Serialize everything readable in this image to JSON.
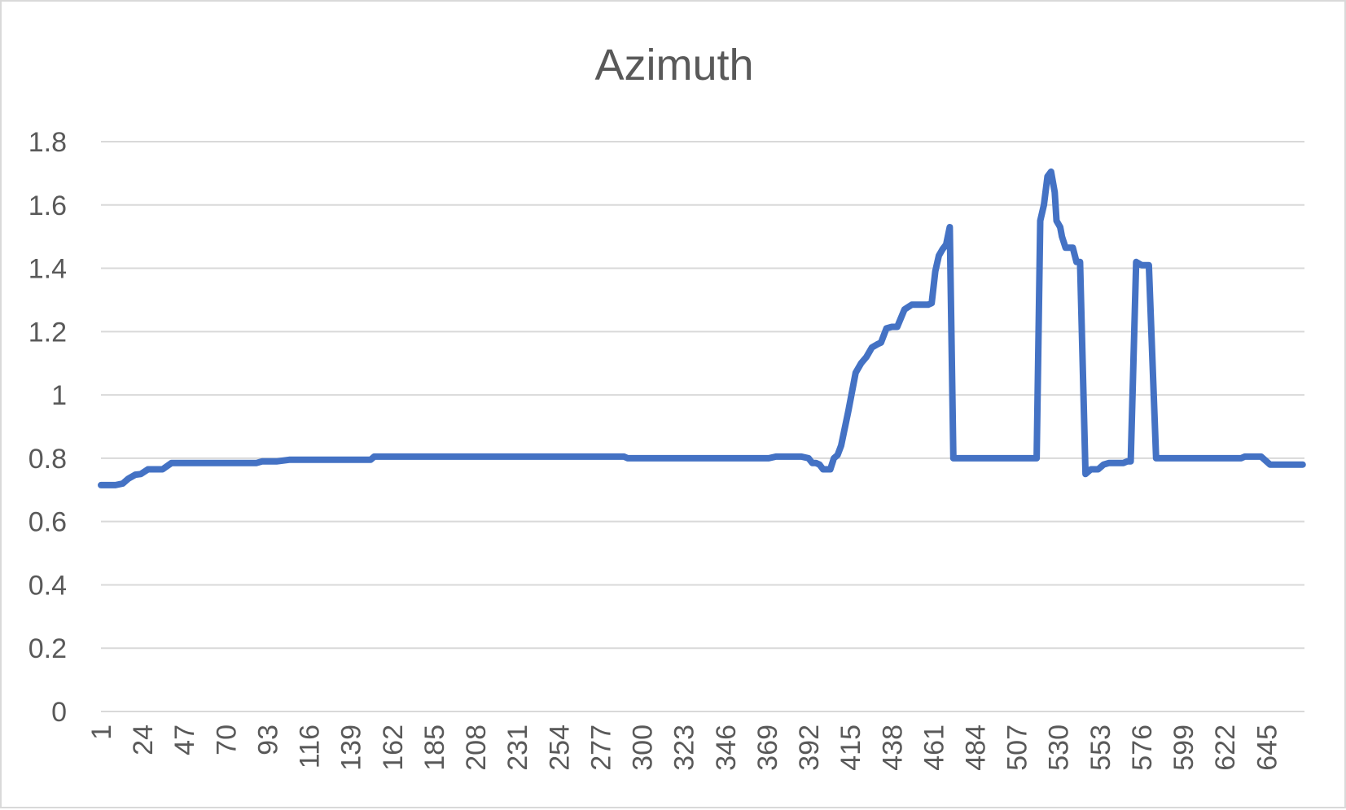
{
  "chart_data": {
    "type": "line",
    "title": "Azimuth",
    "xlabel": "",
    "ylabel": "",
    "ylim": [
      0,
      1.8
    ],
    "yticks": [
      "0",
      "0.2",
      "0.4",
      "0.6",
      "0.8",
      "1",
      "1.2",
      "1.4",
      "1.6",
      "1.8"
    ],
    "xlim": [
      1,
      666
    ],
    "xticks": [
      "1",
      "24",
      "47",
      "70",
      "93",
      "116",
      "139",
      "162",
      "185",
      "208",
      "231",
      "254",
      "277",
      "300",
      "323",
      "346",
      "369",
      "392",
      "415",
      "438",
      "461",
      "484",
      "507",
      "530",
      "553",
      "576",
      "599",
      "622",
      "645"
    ],
    "grid": true,
    "legend": "none",
    "series": [
      {
        "color": "#4472c4",
        "x": [
          1,
          5,
          9,
          13,
          16,
          20,
          23,
          27,
          31,
          35,
          40,
          80,
          87,
          90,
          98,
          105,
          150,
          152,
          290,
          292,
          343,
          345,
          370,
          374,
          380,
          384,
          388,
          392,
          394,
          396,
          398,
          400,
          402,
          404,
          406,
          408,
          410,
          414,
          418,
          421,
          424,
          427,
          430,
          432,
          435,
          438,
          441,
          445,
          449,
          452,
          456,
          458,
          460,
          462,
          464,
          466,
          468,
          470,
          472,
          476,
          518,
          520,
          522,
          524,
          526,
          528,
          529,
          531,
          532,
          534,
          536,
          538,
          540,
          542,
          545,
          548,
          552,
          555,
          558,
          563,
          566,
          568,
          570,
          573,
          576,
          580,
          584,
          629,
          631,
          633,
          636,
          638,
          640,
          642,
          647,
          652,
          658,
          665
        ],
        "y": [
          0.715,
          0.715,
          0.715,
          0.72,
          0.735,
          0.748,
          0.75,
          0.765,
          0.765,
          0.765,
          0.785,
          0.785,
          0.785,
          0.79,
          0.79,
          0.795,
          0.795,
          0.805,
          0.805,
          0.8,
          0.8,
          0.8,
          0.8,
          0.805,
          0.805,
          0.805,
          0.805,
          0.8,
          0.785,
          0.785,
          0.78,
          0.765,
          0.765,
          0.765,
          0.8,
          0.81,
          0.84,
          0.95,
          1.07,
          1.1,
          1.12,
          1.15,
          1.16,
          1.165,
          1.21,
          1.215,
          1.215,
          1.27,
          1.285,
          1.285,
          1.285,
          1.285,
          1.29,
          1.39,
          1.44,
          1.46,
          1.475,
          1.53,
          0.8,
          0.8,
          0.8,
          1.55,
          1.6,
          1.69,
          1.705,
          1.64,
          1.55,
          1.53,
          1.5,
          1.465,
          1.465,
          1.465,
          1.42,
          1.42,
          0.75,
          0.765,
          0.765,
          0.78,
          0.785,
          0.785,
          0.785,
          0.79,
          0.79,
          1.42,
          1.41,
          1.41,
          0.8,
          0.8,
          0.8,
          0.805,
          0.805,
          0.805,
          0.805,
          0.805,
          0.78,
          0.78,
          0.78,
          0.78
        ]
      }
    ]
  }
}
